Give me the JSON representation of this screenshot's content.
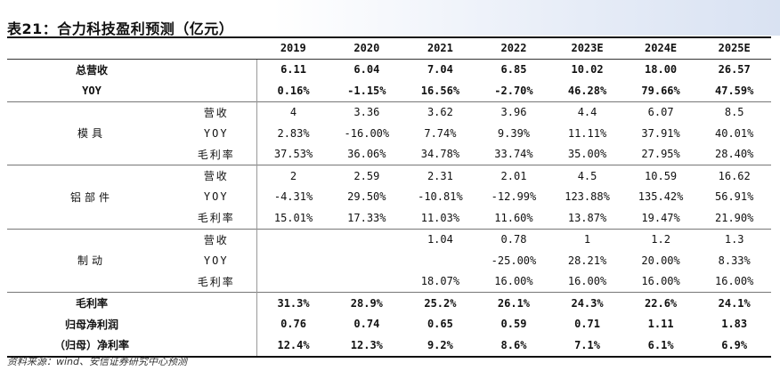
{
  "title": "表21：合力科技盈利预测（亿元）",
  "years": [
    "2019",
    "2020",
    "2021",
    "2022",
    "2023E",
    "2024E",
    "2025E"
  ],
  "rows": {
    "total_rev": {
      "label": "总营收",
      "values": [
        "6.11",
        "6.04",
        "7.04",
        "6.85",
        "10.02",
        "18.00",
        "26.57"
      ]
    },
    "total_yoy": {
      "label": "YOY",
      "values": [
        "0.16%",
        "-1.15%",
        "16.56%",
        "-2.70%",
        "46.28%",
        "79.66%",
        "47.59%"
      ]
    },
    "mold": {
      "name": "模具",
      "rev": {
        "label": "营收",
        "values": [
          "4",
          "3.36",
          "3.62",
          "3.96",
          "4.4",
          "6.07",
          "8.5"
        ]
      },
      "yoy": {
        "label": "YOY",
        "values": [
          "2.83%",
          "-16.00%",
          "7.74%",
          "9.39%",
          "11.11%",
          "37.91%",
          "40.01%"
        ]
      },
      "gm": {
        "label": "毛利率",
        "values": [
          "37.53%",
          "36.06%",
          "34.78%",
          "33.74%",
          "35.00%",
          "27.95%",
          "28.40%"
        ]
      }
    },
    "alu": {
      "name": "铝部件",
      "rev": {
        "label": "营收",
        "values": [
          "2",
          "2.59",
          "2.31",
          "2.01",
          "4.5",
          "10.59",
          "16.62"
        ]
      },
      "yoy": {
        "label": "YOY",
        "values": [
          "-4.31%",
          "29.50%",
          "-10.81%",
          "-12.99%",
          "123.88%",
          "135.42%",
          "56.91%"
        ]
      },
      "gm": {
        "label": "毛利率",
        "values": [
          "15.01%",
          "17.33%",
          "11.03%",
          "11.60%",
          "13.87%",
          "19.47%",
          "21.90%"
        ]
      }
    },
    "brake": {
      "name": "制动",
      "rev": {
        "label": "营收",
        "values": [
          "",
          "",
          "1.04",
          "0.78",
          "1",
          "1.2",
          "1.3"
        ]
      },
      "yoy": {
        "label": "YOY",
        "values": [
          "",
          "",
          "",
          "-25.00%",
          "28.21%",
          "20.00%",
          "8.33%"
        ]
      },
      "gm": {
        "label": "毛利率",
        "values": [
          "",
          "",
          "18.07%",
          "16.00%",
          "16.00%",
          "16.00%",
          "16.00%"
        ]
      }
    },
    "gross_margin": {
      "label": "毛利率",
      "values": [
        "31.3%",
        "28.9%",
        "25.2%",
        "26.1%",
        "24.3%",
        "22.6%",
        "24.1%"
      ]
    },
    "net_profit": {
      "label": "归母净利润",
      "values": [
        "0.76",
        "0.74",
        "0.65",
        "0.59",
        "0.71",
        "1.11",
        "1.83"
      ]
    },
    "net_margin": {
      "label": "（归母）净利率",
      "values": [
        "12.4%",
        "12.3%",
        "9.2%",
        "8.6%",
        "7.1%",
        "6.1%",
        "6.9%"
      ]
    }
  },
  "source": "资料来源：wind、安信证券研究中心预测"
}
